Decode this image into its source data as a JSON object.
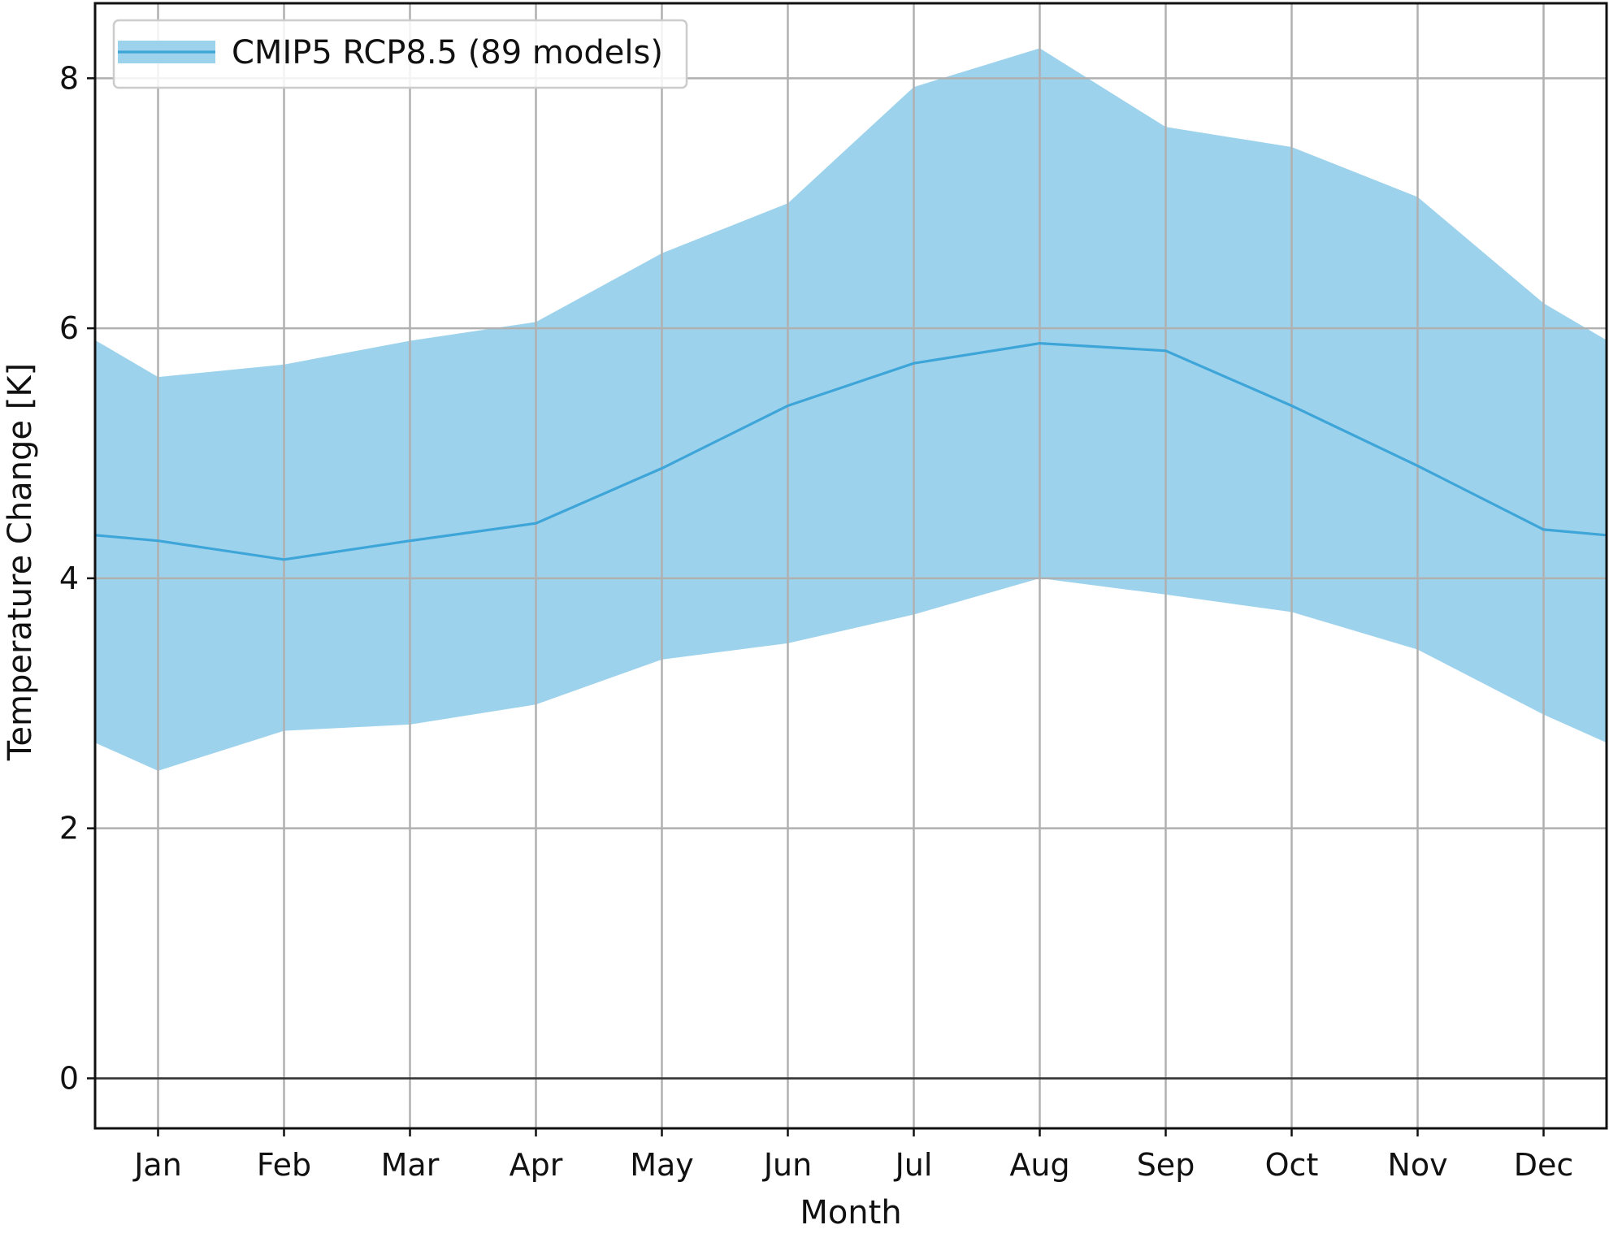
{
  "chart_data": {
    "type": "line",
    "xlabel": "Month",
    "ylabel": "Temperature Change [K]",
    "categories": [
      "Jan",
      "Feb",
      "Mar",
      "Apr",
      "May",
      "Jun",
      "Jul",
      "Aug",
      "Sep",
      "Oct",
      "Nov",
      "Dec"
    ],
    "xlim": [
      0.5,
      12.5
    ],
    "ylim": [
      -0.4,
      8.6
    ],
    "yticks": [
      0,
      2,
      4,
      6,
      8
    ],
    "grid": true,
    "zero_line": true,
    "legend_position": "top-left",
    "series": [
      {
        "name": "CMIP5 RCP8.5 (89 models)",
        "color": "#3ea5d9",
        "band_color": "#9dd2ec",
        "median": [
          4.3,
          4.15,
          4.3,
          4.44,
          4.88,
          5.38,
          5.72,
          5.88,
          5.82,
          5.38,
          4.9,
          4.39
        ],
        "upper": [
          5.61,
          5.71,
          5.9,
          6.05,
          6.6,
          7.0,
          7.93,
          8.24,
          7.61,
          7.45,
          7.05,
          6.2
        ],
        "lower": [
          2.46,
          2.78,
          2.83,
          2.99,
          3.35,
          3.48,
          3.71,
          4.0,
          3.87,
          3.73,
          3.43,
          2.91
        ]
      }
    ]
  }
}
